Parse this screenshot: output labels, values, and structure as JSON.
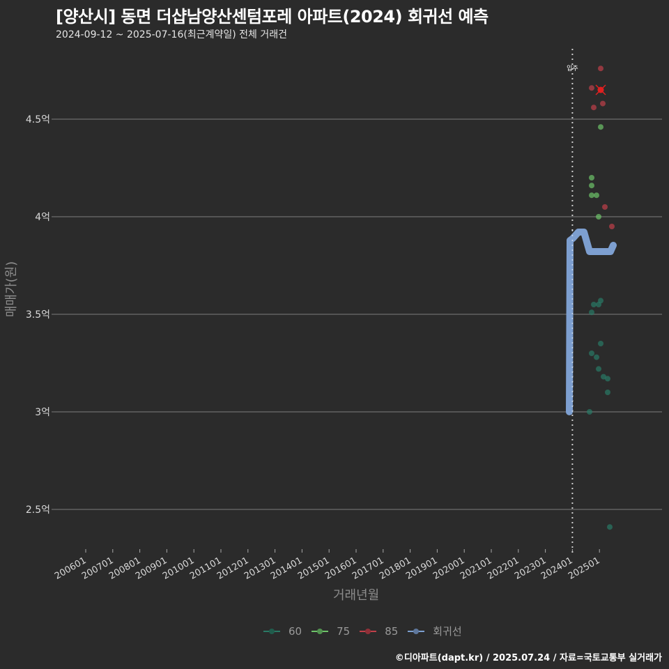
{
  "header": {
    "title": "[양산시] 동면 더샵남양산센텀포레 아파트(2024) 회귀선 예측",
    "subtitle": "2024-09-12 ~ 2025-07-16(최근계약일) 전체 거래건"
  },
  "footer": {
    "credit": "©디아파트(dapt.kr) / 2025.07.24 / 자료=국토교통부 실거래가"
  },
  "colors": {
    "background": "#2b2b2b",
    "grid": "#6e6e6e",
    "s60": "#2a7a66",
    "s75": "#6ec46a",
    "s85": "#c0404a",
    "regression": "#7d9fd0",
    "highlight": "#e02020"
  },
  "chart_data": {
    "type": "scatter",
    "title": "[양산시] 동면 더샵남양산센텀포레 아파트(2024) 회귀선 예측",
    "subtitle": "2024-09-12 ~ 2025-07-16(최근계약일) 전체 거래건",
    "xlabel": "거래년월",
    "ylabel": "매매가(원)",
    "ylim": [
      2.3,
      4.85
    ],
    "y_unit": "억",
    "yticks": [
      {
        "value": 2.5,
        "label": "2.5억"
      },
      {
        "value": 3.0,
        "label": "3억"
      },
      {
        "value": 3.5,
        "label": "3.5억"
      },
      {
        "value": 4.0,
        "label": "4억"
      },
      {
        "value": 4.5,
        "label": "4.5억"
      }
    ],
    "xticks": [
      "200601",
      "200701",
      "200801",
      "200901",
      "201001",
      "201101",
      "201201",
      "201301",
      "201401",
      "201501",
      "201601",
      "201701",
      "201801",
      "201901",
      "202001",
      "202101",
      "202201",
      "202301",
      "202401",
      "202501"
    ],
    "grid": true,
    "legend_position": "bottom",
    "annotation": {
      "label": "입주",
      "x": "202401",
      "style": "dotted vertical line"
    },
    "series": [
      {
        "name": "60",
        "type": "scatter",
        "points": [
          {
            "x": "2024-09",
            "y": 3.0
          },
          {
            "x": "2024-09",
            "y": 3.3
          },
          {
            "x": "2024-09",
            "y": 3.51
          },
          {
            "x": "2024-10",
            "y": 3.55
          },
          {
            "x": "2024-10",
            "y": 3.28
          },
          {
            "x": "2024-11",
            "y": 3.55
          },
          {
            "x": "2024-11",
            "y": 3.22
          },
          {
            "x": "2024-12",
            "y": 3.57
          },
          {
            "x": "2024-12",
            "y": 3.35
          },
          {
            "x": "2025-01",
            "y": 3.18
          },
          {
            "x": "2025-03",
            "y": 3.17
          },
          {
            "x": "2025-03",
            "y": 3.1
          },
          {
            "x": "2025-04",
            "y": 2.41
          }
        ]
      },
      {
        "name": "75",
        "type": "scatter",
        "points": [
          {
            "x": "2024-09",
            "y": 4.2
          },
          {
            "x": "2024-09",
            "y": 4.16
          },
          {
            "x": "2024-09",
            "y": 4.11
          },
          {
            "x": "2024-10",
            "y": 4.11
          },
          {
            "x": "2024-11",
            "y": 4.0
          },
          {
            "x": "2024-12",
            "y": 4.46
          }
        ]
      },
      {
        "name": "85",
        "type": "scatter",
        "points": [
          {
            "x": "2024-09",
            "y": 4.66
          },
          {
            "x": "2024-10",
            "y": 4.56
          },
          {
            "x": "2024-12",
            "y": 4.76
          },
          {
            "x": "2024-12",
            "y": 4.65,
            "highlight": true
          },
          {
            "x": "2025-01",
            "y": 4.58
          },
          {
            "x": "2025-02",
            "y": 4.05
          },
          {
            "x": "2025-05",
            "y": 3.95
          }
        ]
      },
      {
        "name": "회귀선",
        "type": "line",
        "points": [
          {
            "x": "2023-11",
            "y": 3.0
          },
          {
            "x": "2024-01",
            "y": 3.88
          },
          {
            "x": "2024-03",
            "y": 3.92
          },
          {
            "x": "2024-05",
            "y": 3.92
          },
          {
            "x": "2024-07",
            "y": 3.82
          },
          {
            "x": "2025-03",
            "y": 3.82
          },
          {
            "x": "2025-05",
            "y": 3.85
          }
        ]
      }
    ]
  },
  "legend": {
    "items": [
      {
        "label": "60",
        "color": "#2a7a66"
      },
      {
        "label": "75",
        "color": "#6ec46a"
      },
      {
        "label": "85",
        "color": "#c0404a"
      },
      {
        "label": "회귀선",
        "color": "#7d9fd0"
      }
    ]
  },
  "axes": {
    "xlabel": "거래년월",
    "ylabel": "매매가(원)",
    "annotation_label": "입주"
  }
}
